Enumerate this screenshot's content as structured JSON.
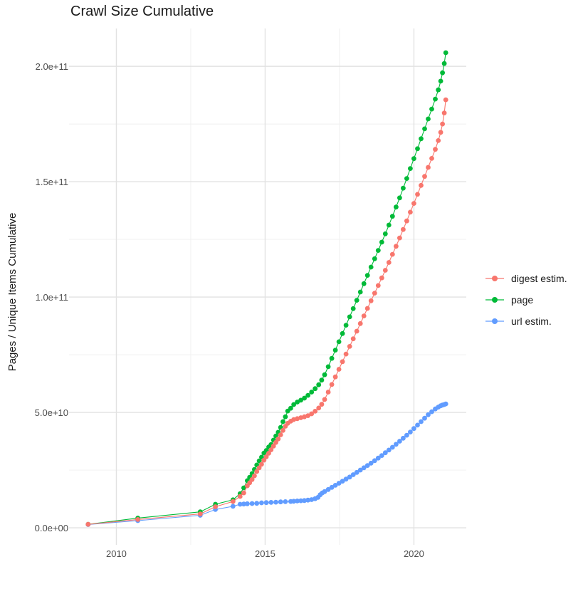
{
  "title": "Crawl Size Cumulative",
  "colors": {
    "digest": "#F8766D",
    "page": "#00BA38",
    "url": "#619CFF",
    "grid_major": "#E2E2E2",
    "grid_minor": "#EFEFEF",
    "tick_text": "#4d4d4d",
    "title_text": "#1a1a1a"
  },
  "legend": {
    "items": [
      {
        "id": "digest",
        "label": "digest estim.",
        "color": "#F8766D"
      },
      {
        "id": "page",
        "label": "page",
        "color": "#00BA38"
      },
      {
        "id": "url",
        "label": "url estim.",
        "color": "#619CFF"
      }
    ]
  },
  "chart_data": {
    "type": "line",
    "title": "Crawl Size Cumulative",
    "xlabel": "",
    "ylabel": "Pages / Unique Items Cumulative",
    "legend_position": "right",
    "grid": true,
    "x_unit": "year (crawl date)",
    "y_unit": "count, values stored as billions (1e9)",
    "xlim": [
      2008.41,
      2021.76
    ],
    "ylim_e9": [
      -7.4,
      216.4
    ],
    "x_major_ticks": [
      {
        "label": "2010",
        "year": 2010
      },
      {
        "label": "2015",
        "year": 2015
      },
      {
        "label": "2020",
        "year": 2020
      }
    ],
    "x_minor_ticks": [
      2012.5,
      2017.5
    ],
    "y_major_ticks": [
      {
        "label": "0.0e+00",
        "value_e9": 0
      },
      {
        "label": "5.0e+10",
        "value_e9": 50
      },
      {
        "label": "1.0e+11",
        "value_e9": 100
      },
      {
        "label": "1.5e+11",
        "value_e9": 150
      },
      {
        "label": "2.0e+11",
        "value_e9": 200
      }
    ],
    "y_minor_ticks_e9": [
      25,
      75,
      125,
      175
    ],
    "series": [
      {
        "id": "page",
        "name": "page",
        "color": "#00BA38",
        "points": [
          [
            2009.05,
            1.5
          ],
          [
            2010.72,
            4.2
          ],
          [
            2012.82,
            6.9
          ],
          [
            2013.33,
            10.2
          ],
          [
            2013.92,
            12.1
          ],
          [
            2014.16,
            14.8
          ],
          [
            2014.28,
            17.3
          ],
          [
            2014.4,
            20.4
          ],
          [
            2014.48,
            21.9
          ],
          [
            2014.56,
            23.5
          ],
          [
            2014.64,
            25.3
          ],
          [
            2014.72,
            27.2
          ],
          [
            2014.8,
            29.0
          ],
          [
            2014.88,
            30.6
          ],
          [
            2014.96,
            32.4
          ],
          [
            2015.04,
            33.5
          ],
          [
            2015.12,
            35.0
          ],
          [
            2015.2,
            36.1
          ],
          [
            2015.28,
            38.0
          ],
          [
            2015.36,
            39.8
          ],
          [
            2015.44,
            41.4
          ],
          [
            2015.52,
            43.5
          ],
          [
            2015.6,
            46.0
          ],
          [
            2015.68,
            48.1
          ],
          [
            2015.76,
            50.6
          ],
          [
            2015.86,
            51.8
          ],
          [
            2015.96,
            53.4
          ],
          [
            2016.08,
            54.5
          ],
          [
            2016.2,
            55.3
          ],
          [
            2016.32,
            56.2
          ],
          [
            2016.44,
            57.4
          ],
          [
            2016.56,
            58.8
          ],
          [
            2016.68,
            60.3
          ],
          [
            2016.8,
            62.0
          ],
          [
            2016.9,
            64.0
          ],
          [
            2017.0,
            66.3
          ],
          [
            2017.12,
            69.8
          ],
          [
            2017.24,
            73.4
          ],
          [
            2017.36,
            77.0
          ],
          [
            2017.48,
            80.6
          ],
          [
            2017.6,
            84.2
          ],
          [
            2017.72,
            87.8
          ],
          [
            2017.84,
            91.4
          ],
          [
            2017.96,
            95.0
          ],
          [
            2018.08,
            98.6
          ],
          [
            2018.2,
            102.2
          ],
          [
            2018.32,
            105.8
          ],
          [
            2018.44,
            109.4
          ],
          [
            2018.56,
            113.0
          ],
          [
            2018.68,
            116.6
          ],
          [
            2018.8,
            120.2
          ],
          [
            2018.92,
            123.8
          ],
          [
            2019.04,
            127.4
          ],
          [
            2019.16,
            131.2
          ],
          [
            2019.28,
            135.0
          ],
          [
            2019.4,
            139.0
          ],
          [
            2019.52,
            143.0
          ],
          [
            2019.64,
            147.2
          ],
          [
            2019.76,
            151.4
          ],
          [
            2019.88,
            155.7
          ],
          [
            2020.0,
            160.0
          ],
          [
            2020.12,
            164.3
          ],
          [
            2020.24,
            168.6
          ],
          [
            2020.36,
            172.9
          ],
          [
            2020.48,
            177.2
          ],
          [
            2020.6,
            181.5
          ],
          [
            2020.72,
            185.8
          ],
          [
            2020.82,
            189.8
          ],
          [
            2020.9,
            193.6
          ],
          [
            2020.96,
            197.2
          ],
          [
            2021.02,
            201.2
          ],
          [
            2021.07,
            205.9
          ]
        ]
      },
      {
        "id": "url",
        "name": "url estim.",
        "color": "#619CFF",
        "points": [
          [
            2009.05,
            1.4
          ],
          [
            2010.72,
            3.1
          ],
          [
            2012.82,
            5.4
          ],
          [
            2013.33,
            7.9
          ],
          [
            2013.92,
            9.3
          ],
          [
            2014.16,
            10.2
          ],
          [
            2014.28,
            10.3
          ],
          [
            2014.4,
            10.4
          ],
          [
            2014.56,
            10.5
          ],
          [
            2014.72,
            10.6
          ],
          [
            2014.88,
            10.8
          ],
          [
            2015.04,
            10.9
          ],
          [
            2015.2,
            11.0
          ],
          [
            2015.36,
            11.1
          ],
          [
            2015.52,
            11.2
          ],
          [
            2015.68,
            11.3
          ],
          [
            2015.86,
            11.4
          ],
          [
            2015.96,
            11.5
          ],
          [
            2016.08,
            11.6
          ],
          [
            2016.2,
            11.7
          ],
          [
            2016.32,
            11.8
          ],
          [
            2016.44,
            12.0
          ],
          [
            2016.56,
            12.2
          ],
          [
            2016.68,
            12.6
          ],
          [
            2016.78,
            13.2
          ],
          [
            2016.85,
            14.3
          ],
          [
            2016.92,
            15.1
          ],
          [
            2017.0,
            15.7
          ],
          [
            2017.12,
            16.6
          ],
          [
            2017.24,
            17.5
          ],
          [
            2017.36,
            18.4
          ],
          [
            2017.48,
            19.3
          ],
          [
            2017.6,
            20.2
          ],
          [
            2017.72,
            21.1
          ],
          [
            2017.84,
            22.0
          ],
          [
            2017.96,
            23.0
          ],
          [
            2018.08,
            24.0
          ],
          [
            2018.2,
            25.0
          ],
          [
            2018.32,
            26.0
          ],
          [
            2018.44,
            27.0
          ],
          [
            2018.56,
            28.0
          ],
          [
            2018.68,
            29.1
          ],
          [
            2018.8,
            30.2
          ],
          [
            2018.92,
            31.3
          ],
          [
            2019.04,
            32.5
          ],
          [
            2019.16,
            33.7
          ],
          [
            2019.28,
            34.9
          ],
          [
            2019.4,
            36.2
          ],
          [
            2019.52,
            37.5
          ],
          [
            2019.64,
            38.8
          ],
          [
            2019.76,
            40.1
          ],
          [
            2019.88,
            41.5
          ],
          [
            2020.0,
            43.0
          ],
          [
            2020.12,
            44.5
          ],
          [
            2020.24,
            46.0
          ],
          [
            2020.36,
            47.5
          ],
          [
            2020.48,
            49.0
          ],
          [
            2020.6,
            50.3
          ],
          [
            2020.72,
            51.5
          ],
          [
            2020.82,
            52.3
          ],
          [
            2020.9,
            52.9
          ],
          [
            2020.96,
            53.2
          ],
          [
            2021.02,
            53.4
          ],
          [
            2021.07,
            53.7
          ]
        ]
      },
      {
        "id": "digest",
        "name": "digest estim.",
        "color": "#F8766D",
        "points": [
          [
            2009.05,
            1.5
          ],
          [
            2010.72,
            3.6
          ],
          [
            2012.82,
            6.0
          ],
          [
            2013.33,
            9.1
          ],
          [
            2013.92,
            11.4
          ],
          [
            2014.16,
            13.6
          ],
          [
            2014.28,
            15.1
          ],
          [
            2014.4,
            18.2
          ],
          [
            2014.48,
            19.5
          ],
          [
            2014.56,
            20.9
          ],
          [
            2014.64,
            22.5
          ],
          [
            2014.72,
            24.4
          ],
          [
            2014.8,
            26.0
          ],
          [
            2014.88,
            27.5
          ],
          [
            2014.96,
            29.3
          ],
          [
            2015.04,
            30.8
          ],
          [
            2015.12,
            32.3
          ],
          [
            2015.2,
            33.8
          ],
          [
            2015.28,
            35.4
          ],
          [
            2015.36,
            37.0
          ],
          [
            2015.44,
            38.5
          ],
          [
            2015.52,
            40.3
          ],
          [
            2015.6,
            42.2
          ],
          [
            2015.68,
            44.0
          ],
          [
            2015.76,
            45.3
          ],
          [
            2015.86,
            46.2
          ],
          [
            2015.96,
            46.9
          ],
          [
            2016.08,
            47.3
          ],
          [
            2016.2,
            47.7
          ],
          [
            2016.32,
            48.1
          ],
          [
            2016.44,
            48.6
          ],
          [
            2016.56,
            49.4
          ],
          [
            2016.68,
            50.5
          ],
          [
            2016.8,
            51.9
          ],
          [
            2016.9,
            53.5
          ],
          [
            2017.0,
            55.6
          ],
          [
            2017.12,
            58.8
          ],
          [
            2017.24,
            62.1
          ],
          [
            2017.36,
            65.4
          ],
          [
            2017.48,
            68.7
          ],
          [
            2017.6,
            72.0
          ],
          [
            2017.72,
            75.3
          ],
          [
            2017.84,
            78.6
          ],
          [
            2017.96,
            81.9
          ],
          [
            2018.08,
            85.2
          ],
          [
            2018.2,
            88.5
          ],
          [
            2018.32,
            91.8
          ],
          [
            2018.44,
            95.1
          ],
          [
            2018.56,
            98.4
          ],
          [
            2018.68,
            101.7
          ],
          [
            2018.8,
            105.0
          ],
          [
            2018.92,
            108.3
          ],
          [
            2019.04,
            111.6
          ],
          [
            2019.16,
            115.0
          ],
          [
            2019.28,
            118.5
          ],
          [
            2019.4,
            122.0
          ],
          [
            2019.52,
            125.6
          ],
          [
            2019.64,
            129.3
          ],
          [
            2019.76,
            133.0
          ],
          [
            2019.88,
            136.8
          ],
          [
            2020.0,
            140.6
          ],
          [
            2020.12,
            144.5
          ],
          [
            2020.24,
            148.4
          ],
          [
            2020.36,
            152.3
          ],
          [
            2020.48,
            156.2
          ],
          [
            2020.6,
            160.1
          ],
          [
            2020.72,
            164.0
          ],
          [
            2020.82,
            167.8
          ],
          [
            2020.9,
            171.4
          ],
          [
            2020.96,
            175.0
          ],
          [
            2021.02,
            179.8
          ],
          [
            2021.07,
            185.5
          ]
        ]
      }
    ]
  }
}
